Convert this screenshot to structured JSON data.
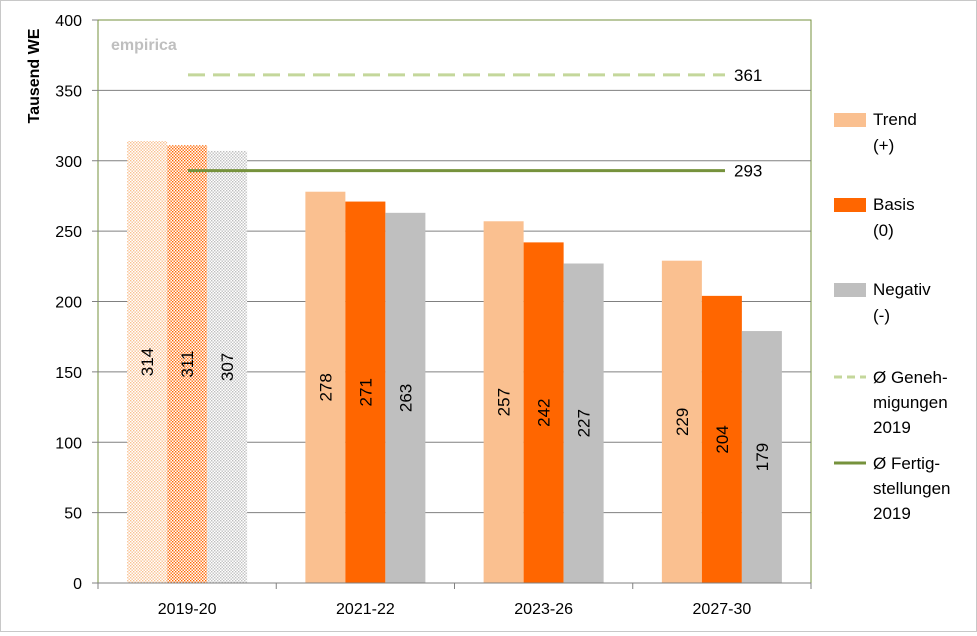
{
  "chart_data": {
    "type": "bar",
    "watermark": "empirica",
    "ylabel": "Tausend WE",
    "xlabel": "",
    "ylim": [
      0,
      400
    ],
    "yticks": [
      0,
      50,
      100,
      150,
      200,
      250,
      300,
      350,
      400
    ],
    "categories": [
      "2019-20",
      "2021-22",
      "2023-26",
      "2027-30"
    ],
    "series": [
      {
        "name": "Trend",
        "name2": "(+)",
        "color": "#fac090",
        "values": [
          314,
          278,
          257,
          229
        ],
        "labels": [
          "314",
          "278",
          "257",
          "229"
        ]
      },
      {
        "name": "Basis",
        "name2": "(0)",
        "color": "#ff6600",
        "values": [
          311,
          271,
          242,
          204
        ],
        "labels": [
          "311",
          "271",
          "242",
          "204"
        ]
      },
      {
        "name": "Negativ",
        "name2": "(-)",
        "color": "#bfbfbf",
        "values": [
          307,
          263,
          227,
          179
        ],
        "labels": [
          "307",
          "263",
          "227",
          "179"
        ]
      }
    ],
    "first_category_style": "dotted",
    "reference_lines": [
      {
        "value": 361,
        "label": "361",
        "style": "dashed",
        "color": "#c4d79b",
        "legend": [
          "Ø Geneh-",
          "migungen",
          "2019"
        ]
      },
      {
        "value": 293,
        "label": "293",
        "style": "solid",
        "color": "#76923c",
        "legend": [
          "Ø Fertig-",
          "stellungen",
          "2019"
        ]
      }
    ],
    "grid": true,
    "legend_position": "right"
  }
}
